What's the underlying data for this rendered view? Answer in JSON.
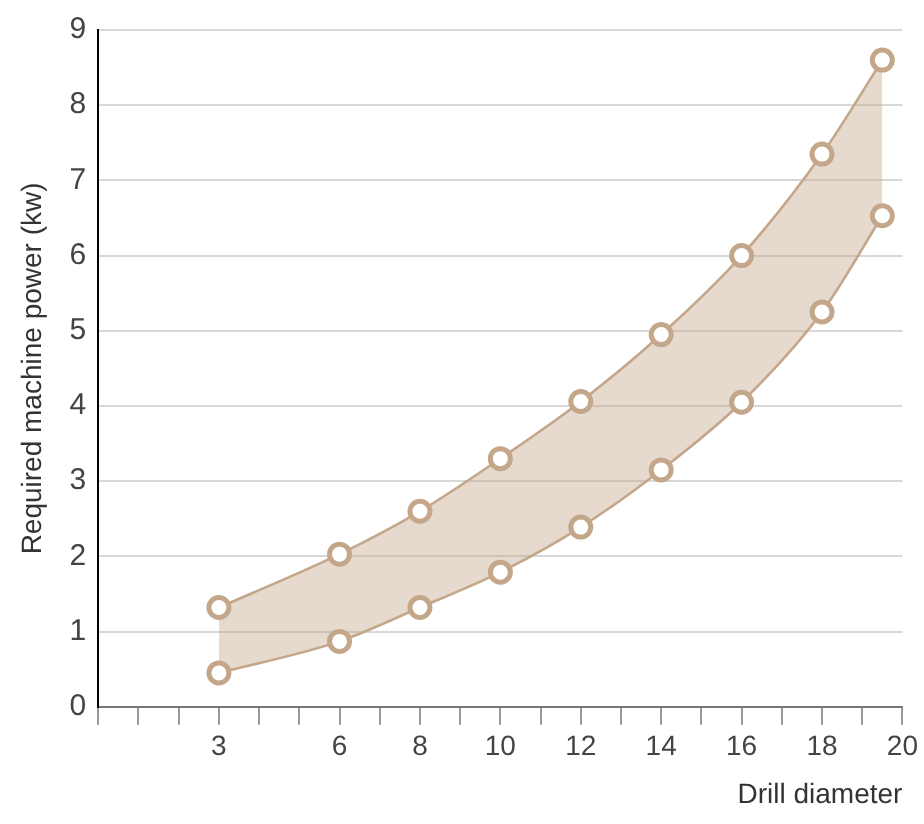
{
  "chart_data": {
    "type": "line",
    "xlabel": "Drill diameter",
    "ylabel": "Required machine power (kw)",
    "series": [
      {
        "type": "line",
        "color": "#c4a78a",
        "x": [
          3,
          6,
          8,
          10,
          12,
          14,
          16,
          18,
          19.5
        ],
        "values": [
          0.45,
          0.87,
          1.32,
          1.79,
          2.39,
          3.15,
          4.05,
          5.25,
          6.53
        ]
      },
      {
        "type": "area",
        "color": "#c4a78a",
        "x": [
          3,
          6,
          8,
          10,
          12,
          14,
          16,
          18,
          19.5
        ],
        "values": [
          1.32,
          2.03,
          2.6,
          3.3,
          4.06,
          4.95,
          6.0,
          7.35,
          8.6
        ]
      }
    ],
    "xlim": [
      0,
      20
    ],
    "xticks": [
      {
        "value": 0,
        "label": null
      },
      {
        "value": 1,
        "label": null
      },
      {
        "value": 2,
        "label": null
      },
      3,
      {
        "value": 4,
        "label": null
      },
      {
        "value": 5,
        "label": null
      },
      6,
      {
        "value": 7,
        "label": null
      },
      8,
      {
        "value": 9,
        "label": null
      },
      10,
      {
        "value": 11,
        "label": null
      },
      12,
      {
        "value": 13,
        "label": null
      },
      14,
      {
        "value": 15,
        "label": null
      },
      16,
      {
        "value": 17,
        "label": null
      },
      18,
      {
        "value": 19,
        "label": null
      },
      20
    ],
    "ylim": [
      0,
      9
    ],
    "yticks": [
      0,
      1,
      2,
      3,
      4,
      5,
      6,
      7,
      8,
      9
    ],
    "grid": "y",
    "legend": false,
    "marker": "circle",
    "line_style": "solid"
  }
}
